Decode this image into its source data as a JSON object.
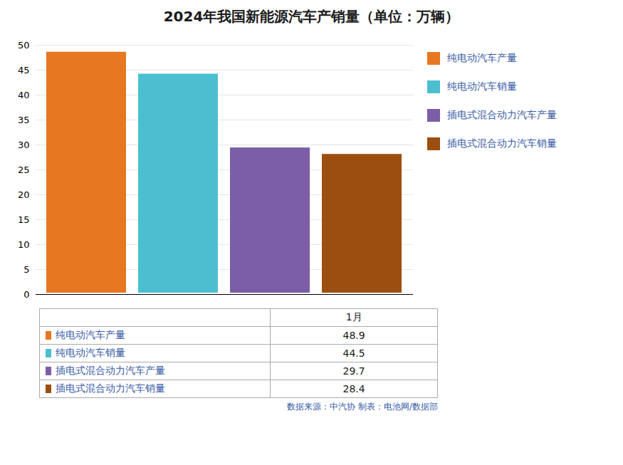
{
  "chart_data": {
    "type": "bar",
    "title": "2024年我国新能源汽车产销量（单位：万辆）",
    "categories": [
      "1月"
    ],
    "series": [
      {
        "name": "纯电动汽车产量",
        "color": "#E87722",
        "values": [
          48.9
        ]
      },
      {
        "name": "纯电动汽车销量",
        "color": "#4BBFCF",
        "values": [
          44.5
        ]
      },
      {
        "name": "插电式混合动力汽车产量",
        "color": "#7B5EA7",
        "values": [
          29.7
        ]
      },
      {
        "name": "插电式混合动力汽车销量",
        "color": "#9B4E10",
        "values": [
          28.4
        ]
      }
    ],
    "ylim": [
      0,
      50
    ],
    "yticks": [
      0,
      5,
      10,
      15,
      20,
      25,
      30,
      35,
      40,
      45,
      50
    ],
    "grid": true,
    "legend": "right",
    "tick_labels": "y",
    "caption": "数据来源：中汽协  制表：电池网/数据部"
  }
}
